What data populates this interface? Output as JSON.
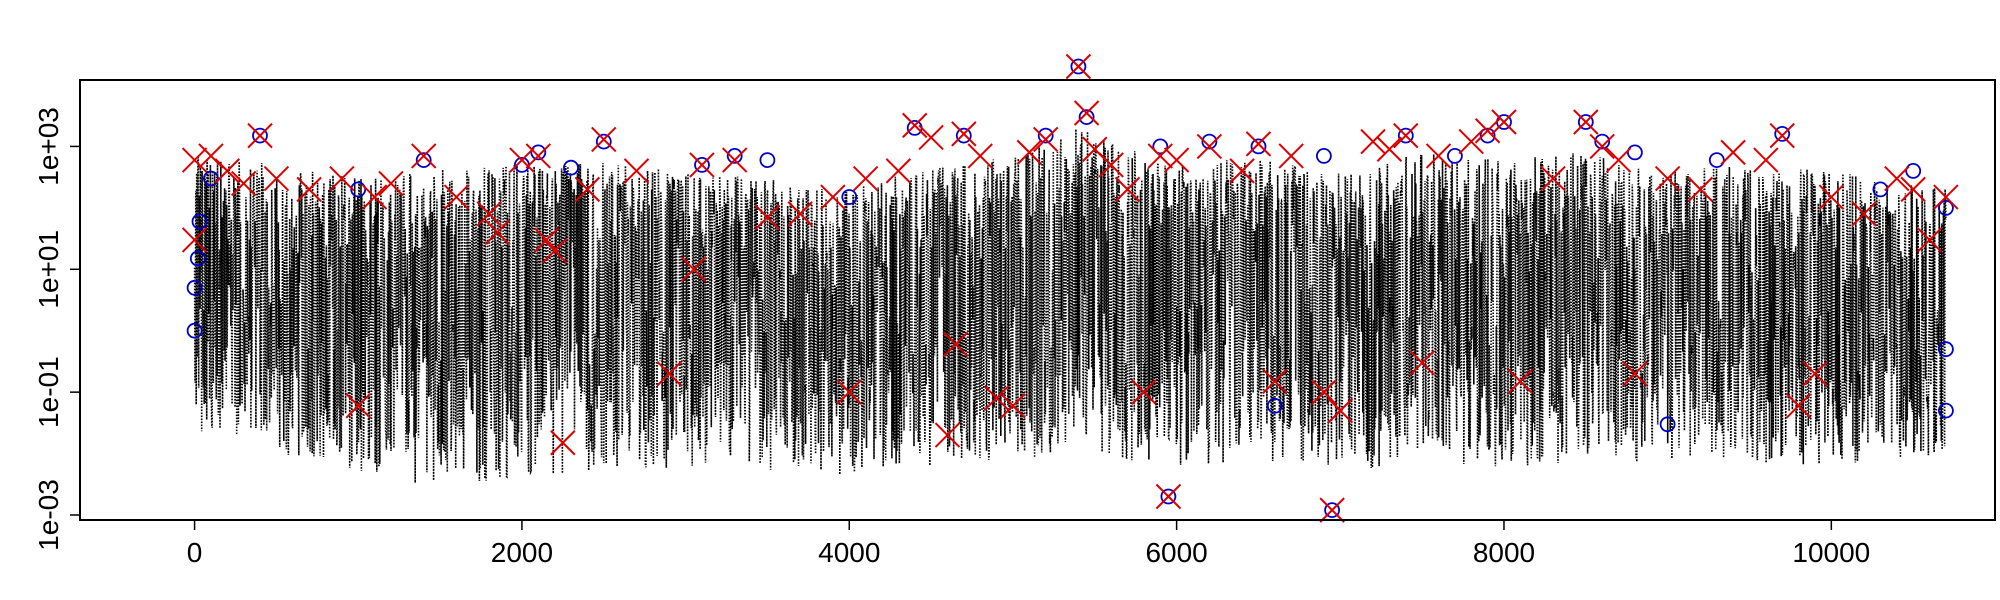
{
  "chart_data": {
    "type": "scatter",
    "title": "",
    "xlabel": "",
    "ylabel": "",
    "xlim": [
      -700,
      11000
    ],
    "ylim": [
      0.001,
      10000
    ],
    "y_scale": "log10",
    "grid": false,
    "legend": "none",
    "x_ticks": [
      0,
      2000,
      4000,
      6000,
      8000,
      10000
    ],
    "x_tick_labels": [
      "0",
      "2000",
      "4000",
      "6000",
      "8000",
      "10000"
    ],
    "y_ticks": [
      0.001,
      0.1,
      10,
      1000
    ],
    "y_tick_labels": [
      "1e-03",
      "1e-01",
      "1e+01",
      "1e+03"
    ],
    "x_range_data": [
      0,
      10700
    ],
    "colors": {
      "series_line": "#000000",
      "circle_markers": "#0000cc",
      "cross_markers": "#dd0000"
    },
    "series": [
      {
        "type": "dotted-line",
        "color": "#000000",
        "note_values": "dense time series spanning approx 0.001 to 1000",
        "envelope": {
          "x": [
            0,
            500,
            1000,
            1400,
            2000,
            2500,
            3000,
            3500,
            4000,
            4500,
            5000,
            5400,
            6000,
            6500,
            7000,
            7500,
            8000,
            8500,
            9000,
            9500,
            10000,
            10700
          ],
          "low": [
            0.02,
            0.01,
            0.005,
            0.003,
            0.004,
            0.005,
            0.006,
            0.005,
            0.004,
            0.006,
            0.008,
            0.01,
            0.006,
            0.008,
            0.005,
            0.007,
            0.006,
            0.006,
            0.008,
            0.007,
            0.006,
            0.01
          ],
          "high": [
            800,
            500,
            300,
            400,
            500,
            600,
            400,
            300,
            200,
            500,
            700,
            2000,
            500,
            700,
            400,
            800,
            600,
            900,
            400,
            500,
            400,
            200
          ]
        }
      },
      {
        "type": "circle-markers",
        "color": "#0000cc",
        "points": [
          [
            0,
            1.0
          ],
          [
            0,
            5
          ],
          [
            20,
            15
          ],
          [
            30,
            60
          ],
          [
            100,
            300
          ],
          [
            400,
            1500
          ],
          [
            1000,
            200
          ],
          [
            1400,
            600
          ],
          [
            2000,
            500
          ],
          [
            2100,
            800
          ],
          [
            2300,
            450
          ],
          [
            2500,
            1200
          ],
          [
            3100,
            500
          ],
          [
            3300,
            700
          ],
          [
            3500,
            600
          ],
          [
            4000,
            150
          ],
          [
            4400,
            2000
          ],
          [
            4700,
            1500
          ],
          [
            5200,
            1500
          ],
          [
            5400,
            20000
          ],
          [
            5450,
            3000
          ],
          [
            5900,
            1000
          ],
          [
            5950,
            0.002
          ],
          [
            6200,
            1200
          ],
          [
            6500,
            1000
          ],
          [
            6600,
            0.06
          ],
          [
            6900,
            700
          ],
          [
            6950,
            0.0012
          ],
          [
            7400,
            1500
          ],
          [
            7700,
            700
          ],
          [
            7900,
            1500
          ],
          [
            8000,
            2500
          ],
          [
            8500,
            2500
          ],
          [
            8600,
            1200
          ],
          [
            8800,
            800
          ],
          [
            9000,
            0.03
          ],
          [
            9300,
            600
          ],
          [
            9700,
            1600
          ],
          [
            10300,
            200
          ],
          [
            10500,
            400
          ],
          [
            10700,
            100
          ],
          [
            10700,
            0.5
          ],
          [
            10700,
            0.05
          ]
        ]
      },
      {
        "type": "cross-markers",
        "color": "#dd0000",
        "points": [
          [
            0,
            600
          ],
          [
            0,
            30
          ],
          [
            100,
            700
          ],
          [
            200,
            400
          ],
          [
            300,
            250
          ],
          [
            400,
            1500
          ],
          [
            500,
            300
          ],
          [
            700,
            200
          ],
          [
            900,
            300
          ],
          [
            1000,
            0.06
          ],
          [
            1100,
            150
          ],
          [
            1200,
            250
          ],
          [
            1400,
            700
          ],
          [
            1600,
            150
          ],
          [
            1800,
            80
          ],
          [
            1850,
            40
          ],
          [
            2000,
            600
          ],
          [
            2100,
            700
          ],
          [
            2150,
            30
          ],
          [
            2200,
            20
          ],
          [
            2250,
            0.015
          ],
          [
            2400,
            200
          ],
          [
            2500,
            1300
          ],
          [
            2700,
            400
          ],
          [
            2900,
            0.2
          ],
          [
            3050,
            10
          ],
          [
            3100,
            500
          ],
          [
            3300,
            600
          ],
          [
            3500,
            70
          ],
          [
            3700,
            80
          ],
          [
            3900,
            150
          ],
          [
            4000,
            0.1
          ],
          [
            4100,
            300
          ],
          [
            4300,
            400
          ],
          [
            4400,
            2200
          ],
          [
            4500,
            1400
          ],
          [
            4600,
            0.02
          ],
          [
            4650,
            0.6
          ],
          [
            4700,
            1600
          ],
          [
            4800,
            700
          ],
          [
            4900,
            0.08
          ],
          [
            5000,
            0.06
          ],
          [
            5100,
            800
          ],
          [
            5200,
            1300
          ],
          [
            5400,
            20000
          ],
          [
            5450,
            3500
          ],
          [
            5500,
            900
          ],
          [
            5600,
            500
          ],
          [
            5700,
            200
          ],
          [
            5800,
            0.1
          ],
          [
            5900,
            700
          ],
          [
            5950,
            0.002
          ],
          [
            6000,
            600
          ],
          [
            6200,
            1000
          ],
          [
            6400,
            400
          ],
          [
            6500,
            1100
          ],
          [
            6600,
            0.15
          ],
          [
            6700,
            700
          ],
          [
            6900,
            0.1
          ],
          [
            6950,
            0.0012
          ],
          [
            7000,
            0.05
          ],
          [
            7200,
            1200
          ],
          [
            7300,
            900
          ],
          [
            7400,
            1500
          ],
          [
            7500,
            0.3
          ],
          [
            7600,
            700
          ],
          [
            7800,
            1200
          ],
          [
            7900,
            1800
          ],
          [
            8000,
            2500
          ],
          [
            8100,
            0.15
          ],
          [
            8300,
            300
          ],
          [
            8500,
            2500
          ],
          [
            8600,
            1000
          ],
          [
            8700,
            600
          ],
          [
            8800,
            0.2
          ],
          [
            9000,
            300
          ],
          [
            9200,
            200
          ],
          [
            9400,
            800
          ],
          [
            9600,
            600
          ],
          [
            9700,
            1500
          ],
          [
            9800,
            0.06
          ],
          [
            9900,
            0.2
          ],
          [
            10000,
            150
          ],
          [
            10200,
            80
          ],
          [
            10400,
            300
          ],
          [
            10500,
            200
          ],
          [
            10600,
            30
          ],
          [
            10700,
            150
          ]
        ]
      }
    ]
  }
}
